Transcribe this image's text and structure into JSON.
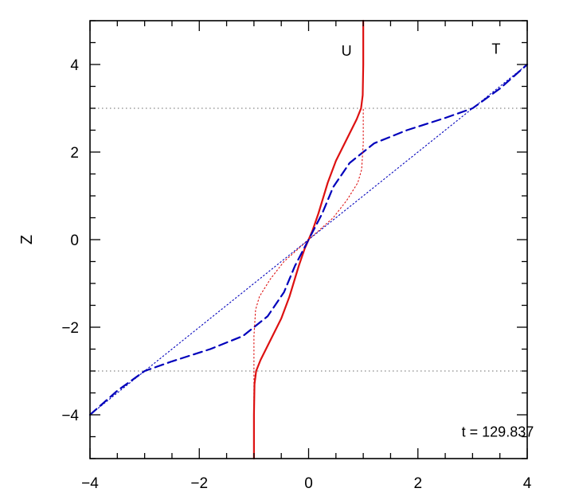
{
  "chart_data": {
    "type": "line",
    "ylabel": "Z",
    "xlim": [
      -4,
      4
    ],
    "ylim": [
      -5,
      5
    ],
    "x_ticks": [
      "−4",
      "−2",
      "0",
      "2",
      "4"
    ],
    "y_ticks": [
      "−4",
      "−2",
      "0",
      "2",
      "4"
    ],
    "grid": false,
    "reference_lines": [
      {
        "z": 3,
        "style": "dotted",
        "color": "#888888"
      },
      {
        "z": -3,
        "style": "dotted",
        "color": "#888888"
      }
    ],
    "series": [
      {
        "name": "U",
        "style": "solid",
        "color": "#dd1111",
        "points": [
          [
            -1.0,
            -5.0
          ],
          [
            -1.0,
            -4.0
          ],
          [
            -0.99,
            -3.3
          ],
          [
            -0.96,
            -3.0
          ],
          [
            -0.88,
            -2.75
          ],
          [
            -0.7,
            -2.3
          ],
          [
            -0.5,
            -1.8
          ],
          [
            -0.35,
            -1.3
          ],
          [
            -0.18,
            -0.6
          ],
          [
            -0.07,
            -0.2
          ],
          [
            0.0,
            0.0
          ],
          [
            0.07,
            0.2
          ],
          [
            0.18,
            0.6
          ],
          [
            0.35,
            1.3
          ],
          [
            0.5,
            1.8
          ],
          [
            0.7,
            2.3
          ],
          [
            0.88,
            2.75
          ],
          [
            0.96,
            3.0
          ],
          [
            0.99,
            3.3
          ],
          [
            1.0,
            4.0
          ],
          [
            1.0,
            5.0
          ]
        ]
      },
      {
        "name": "T",
        "style": "dashed",
        "color": "#0000bb",
        "points": [
          [
            -4.0,
            -4.0
          ],
          [
            -3.5,
            -3.45
          ],
          [
            -3.0,
            -3.0
          ],
          [
            -2.5,
            -2.78
          ],
          [
            -1.8,
            -2.5
          ],
          [
            -1.2,
            -2.2
          ],
          [
            -0.75,
            -1.75
          ],
          [
            -0.45,
            -1.2
          ],
          [
            -0.25,
            -0.6
          ],
          [
            0.0,
            0.0
          ],
          [
            0.25,
            0.6
          ],
          [
            0.45,
            1.2
          ],
          [
            0.75,
            1.75
          ],
          [
            1.2,
            2.2
          ],
          [
            1.8,
            2.5
          ],
          [
            2.5,
            2.78
          ],
          [
            3.0,
            3.0
          ],
          [
            3.5,
            3.45
          ],
          [
            4.0,
            4.0
          ]
        ]
      },
      {
        "style": "dotted",
        "color": "#dd1111",
        "points": [
          [
            -1.0,
            -5.0
          ],
          [
            -1.0,
            -2.2
          ],
          [
            -0.97,
            -1.6
          ],
          [
            -0.9,
            -1.3
          ],
          [
            -0.7,
            -0.9
          ],
          [
            -0.45,
            -0.5
          ],
          [
            0.0,
            0.0
          ],
          [
            0.45,
            0.5
          ],
          [
            0.7,
            0.9
          ],
          [
            0.9,
            1.3
          ],
          [
            0.97,
            1.6
          ],
          [
            1.0,
            2.2
          ],
          [
            1.0,
            3.0
          ]
        ]
      },
      {
        "style": "dotted",
        "color": "#0000bb",
        "points": [
          [
            -4.0,
            -4.0
          ],
          [
            4.0,
            4.0
          ]
        ]
      }
    ],
    "annotations": [
      {
        "text": "U",
        "x": 0.6,
        "y": 4.2
      },
      {
        "text": "T",
        "x": 3.35,
        "y": 4.25
      },
      {
        "text": "t  =  129.837",
        "x": 2.8,
        "y": -4.5
      }
    ]
  }
}
